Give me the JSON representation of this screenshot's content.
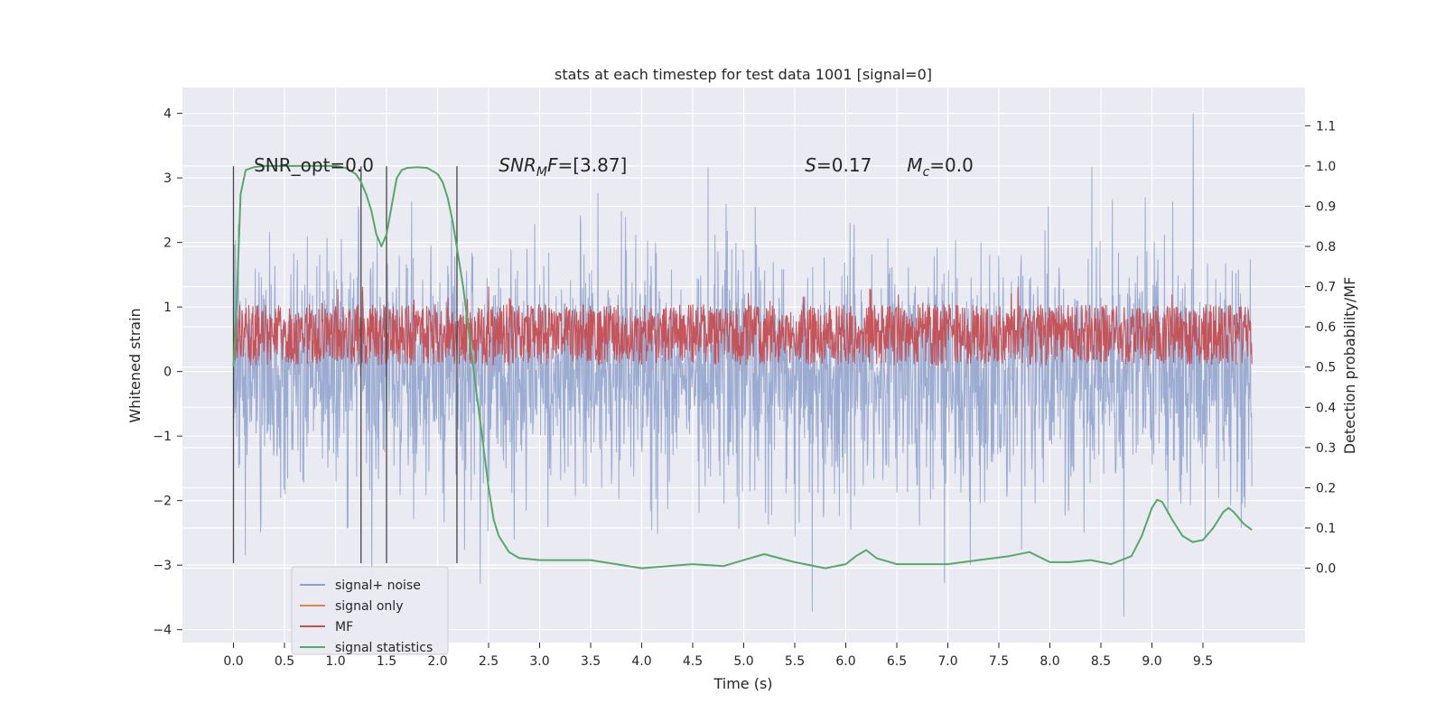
{
  "chart_data": {
    "type": "line",
    "title": "stats at each timestep for test data 1001 [signal=0]",
    "xlabel": "Time (s)",
    "ylabel": "Whitened strain",
    "y2label": "Detection probability/MF",
    "xlim": [
      -0.5,
      10.5
    ],
    "ylim": [
      -4.2,
      4.4
    ],
    "y2lim": [
      -0.185,
      1.195
    ],
    "xticks": [
      0.0,
      0.5,
      1.0,
      1.5,
      2.0,
      2.5,
      3.0,
      3.5,
      4.0,
      4.5,
      5.0,
      5.5,
      6.0,
      6.5,
      7.0,
      7.5,
      8.0,
      8.5,
      9.0,
      9.5
    ],
    "xtick_labels": [
      "0.0",
      "0.5",
      "1.0",
      "1.5",
      "2.0",
      "2.5",
      "3.0",
      "3.5",
      "4.0",
      "4.5",
      "5.0",
      "5.5",
      "6.0",
      "6.5",
      "7.0",
      "7.5",
      "8.0",
      "8.5",
      "9.0",
      "9.5"
    ],
    "yticks": [
      -4,
      -3,
      -2,
      -1,
      0,
      1,
      2,
      3,
      4
    ],
    "ytick_labels": [
      "−4",
      "−3",
      "−2",
      "−1",
      "0",
      "1",
      "2",
      "3",
      "4"
    ],
    "y2ticks": [
      0.0,
      0.1,
      0.2,
      0.3,
      0.4,
      0.5,
      0.6,
      0.7,
      0.8,
      0.9,
      1.0,
      1.1
    ],
    "y2tick_labels": [
      "0.0",
      "0.1",
      "0.2",
      "0.3",
      "0.4",
      "0.5",
      "0.6",
      "0.7",
      "0.8",
      "0.9",
      "1.0",
      "1.1"
    ],
    "grid": true,
    "legend": {
      "position": "lower-left",
      "entries": [
        "signal+ noise",
        "signal only",
        "MF",
        "signal statistics"
      ]
    },
    "series": [
      {
        "name": "signal+ noise",
        "axis": "left",
        "color": "#8da0cb",
        "style": "dense noise trace, approx. mean 0, std ~0.9, range about -3.8 to 4.1",
        "x_range": [
          0.0,
          9.98
        ],
        "envelope": {
          "upper": 3.6,
          "lower": -3.8
        }
      },
      {
        "name": "signal only",
        "axis": "left",
        "color": "#dd8452",
        "values": "flat at 0 (no signal)"
      },
      {
        "name": "MF",
        "axis": "right",
        "color": "#c44e52",
        "style": "dense band on right axis, approx. 0.5 to 0.66",
        "x_range": [
          0.0,
          9.98
        ],
        "band": [
          0.5,
          0.66
        ]
      },
      {
        "name": "signal statistics",
        "axis": "right",
        "color": "#55a868",
        "x": [
          0.0,
          0.03,
          0.07,
          0.12,
          0.2,
          0.3,
          0.5,
          0.7,
          0.9,
          1.0,
          1.1,
          1.2,
          1.25,
          1.3,
          1.35,
          1.4,
          1.45,
          1.5,
          1.55,
          1.6,
          1.65,
          1.7,
          1.8,
          1.9,
          2.0,
          2.05,
          2.1,
          2.15,
          2.2,
          2.25,
          2.3,
          2.35,
          2.4,
          2.45,
          2.5,
          2.55,
          2.6,
          2.7,
          2.8,
          3.0,
          3.5,
          4.0,
          4.5,
          4.8,
          5.0,
          5.2,
          5.5,
          5.8,
          6.0,
          6.1,
          6.2,
          6.3,
          6.5,
          7.0,
          7.3,
          7.6,
          7.8,
          8.0,
          8.2,
          8.4,
          8.6,
          8.8,
          8.9,
          9.0,
          9.05,
          9.1,
          9.2,
          9.3,
          9.4,
          9.5,
          9.6,
          9.7,
          9.75,
          9.8,
          9.9,
          9.98
        ],
        "y": [
          0.5,
          0.65,
          0.93,
          0.99,
          0.997,
          1.0,
          1.0,
          1.0,
          1.0,
          1.0,
          0.995,
          0.98,
          0.96,
          0.93,
          0.89,
          0.83,
          0.8,
          0.83,
          0.9,
          0.97,
          0.99,
          0.995,
          0.997,
          0.995,
          0.98,
          0.96,
          0.92,
          0.86,
          0.78,
          0.7,
          0.6,
          0.5,
          0.4,
          0.3,
          0.2,
          0.12,
          0.08,
          0.04,
          0.025,
          0.02,
          0.02,
          0.0,
          0.01,
          0.005,
          0.02,
          0.035,
          0.015,
          0.0,
          0.01,
          0.03,
          0.045,
          0.025,
          0.01,
          0.01,
          0.02,
          0.03,
          0.04,
          0.015,
          0.015,
          0.02,
          0.01,
          0.03,
          0.08,
          0.15,
          0.17,
          0.165,
          0.12,
          0.08,
          0.065,
          0.07,
          0.1,
          0.14,
          0.15,
          0.14,
          0.11,
          0.095
        ]
      }
    ],
    "vertical_lines": [
      0.0,
      1.25,
      1.5,
      2.19
    ],
    "vertical_line_range": [
      -2.97,
      3.18
    ],
    "annotations": [
      {
        "text": "SNR_opt=0.0",
        "x": 0.2,
        "y": 3.2
      },
      {
        "text": "SNRMF=[3.87]",
        "x": 2.6,
        "y": 3.2
      },
      {
        "text": "S=0.17",
        "x": 5.6,
        "y": 3.2
      },
      {
        "text": "Mc=0.0",
        "x": 6.6,
        "y": 3.2
      }
    ],
    "colors": {
      "axes_bg": "#eaeaf2",
      "grid": "#ffffff",
      "noise": "#8da0cb",
      "signal_only": "#dd8452",
      "mf": "#c44e52",
      "stat": "#55a868",
      "vline": "#444444"
    }
  }
}
